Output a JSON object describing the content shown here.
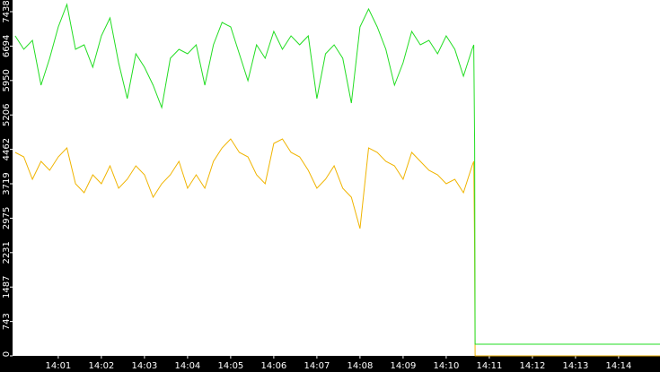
{
  "chart_data": {
    "type": "line",
    "x": [
      0,
      0.2,
      0.4,
      0.6,
      0.8,
      1.0,
      1.2,
      1.4,
      1.6,
      1.8,
      2.0,
      2.2,
      2.4,
      2.6,
      2.8,
      3.0,
      3.2,
      3.4,
      3.6,
      3.8,
      4.0,
      4.2,
      4.4,
      4.6,
      4.8,
      5.0,
      5.2,
      5.4,
      5.6,
      5.8,
      6.0,
      6.2,
      6.4,
      6.6,
      6.8,
      7.0,
      7.2,
      7.4,
      7.6,
      7.8,
      8.0,
      8.2,
      8.4,
      8.6,
      8.8,
      9.0,
      9.2,
      9.4,
      9.6,
      9.8,
      10.0,
      10.2,
      10.4,
      10.6,
      10.64,
      10.66,
      10.67,
      14.96
    ],
    "series": [
      {
        "color": "#22dd22",
        "values": [
          6915,
          6625,
          6818,
          5850,
          6431,
          7109,
          7593,
          6625,
          6722,
          6237,
          6915,
          7302,
          6334,
          5559,
          6528,
          6237,
          5850,
          5366,
          6431,
          6625,
          6528,
          6722,
          5850,
          6722,
          7206,
          7109,
          6528,
          5947,
          6722,
          6431,
          7012,
          6625,
          6915,
          6722,
          6915,
          5559,
          6528,
          6722,
          6431,
          5462,
          7109,
          7496,
          7109,
          6625,
          5850,
          6334,
          7012,
          6722,
          6818,
          6528,
          6915,
          6625,
          6044,
          6625,
          6722,
          4552,
          252,
          252
        ]
      },
      {
        "color": "#f0b400",
        "values": [
          4397,
          4300,
          3816,
          4203,
          4010,
          4300,
          4494,
          3719,
          3525,
          3913,
          3719,
          4107,
          3622,
          3816,
          4107,
          3913,
          3428,
          3719,
          3913,
          4203,
          3622,
          3913,
          3622,
          4203,
          4494,
          4688,
          4397,
          4300,
          3913,
          3719,
          4591,
          4688,
          4397,
          4300,
          4010,
          3622,
          3816,
          4107,
          3622,
          3428,
          2750,
          4494,
          4397,
          4203,
          4107,
          3816,
          4397,
          4203,
          4010,
          3913,
          3719,
          3816,
          3525,
          4107,
          4203,
          2266,
          0,
          0
        ]
      }
    ],
    "xlim": [
      -0.06,
      14.96
    ],
    "xticks": [
      {
        "value": 1,
        "label": "14:01"
      },
      {
        "value": 2,
        "label": "14:02"
      },
      {
        "value": 3,
        "label": "14:03"
      },
      {
        "value": 4,
        "label": "14:04"
      },
      {
        "value": 5,
        "label": "14:05"
      },
      {
        "value": 6,
        "label": "14:06"
      },
      {
        "value": 7,
        "label": "14:07"
      },
      {
        "value": 8,
        "label": "14:08"
      },
      {
        "value": 9,
        "label": "14:09"
      },
      {
        "value": 10,
        "label": "14:10"
      },
      {
        "value": 11,
        "label": "14:11"
      },
      {
        "value": 12,
        "label": "14:12"
      },
      {
        "value": 13,
        "label": "14:13"
      },
      {
        "value": 14,
        "label": "14:14"
      }
    ],
    "ylim": [
      0,
      7690
    ],
    "yticks": [
      0,
      743,
      1487,
      2231,
      2975,
      3719,
      4462,
      5206,
      5950,
      6694,
      7438
    ]
  }
}
